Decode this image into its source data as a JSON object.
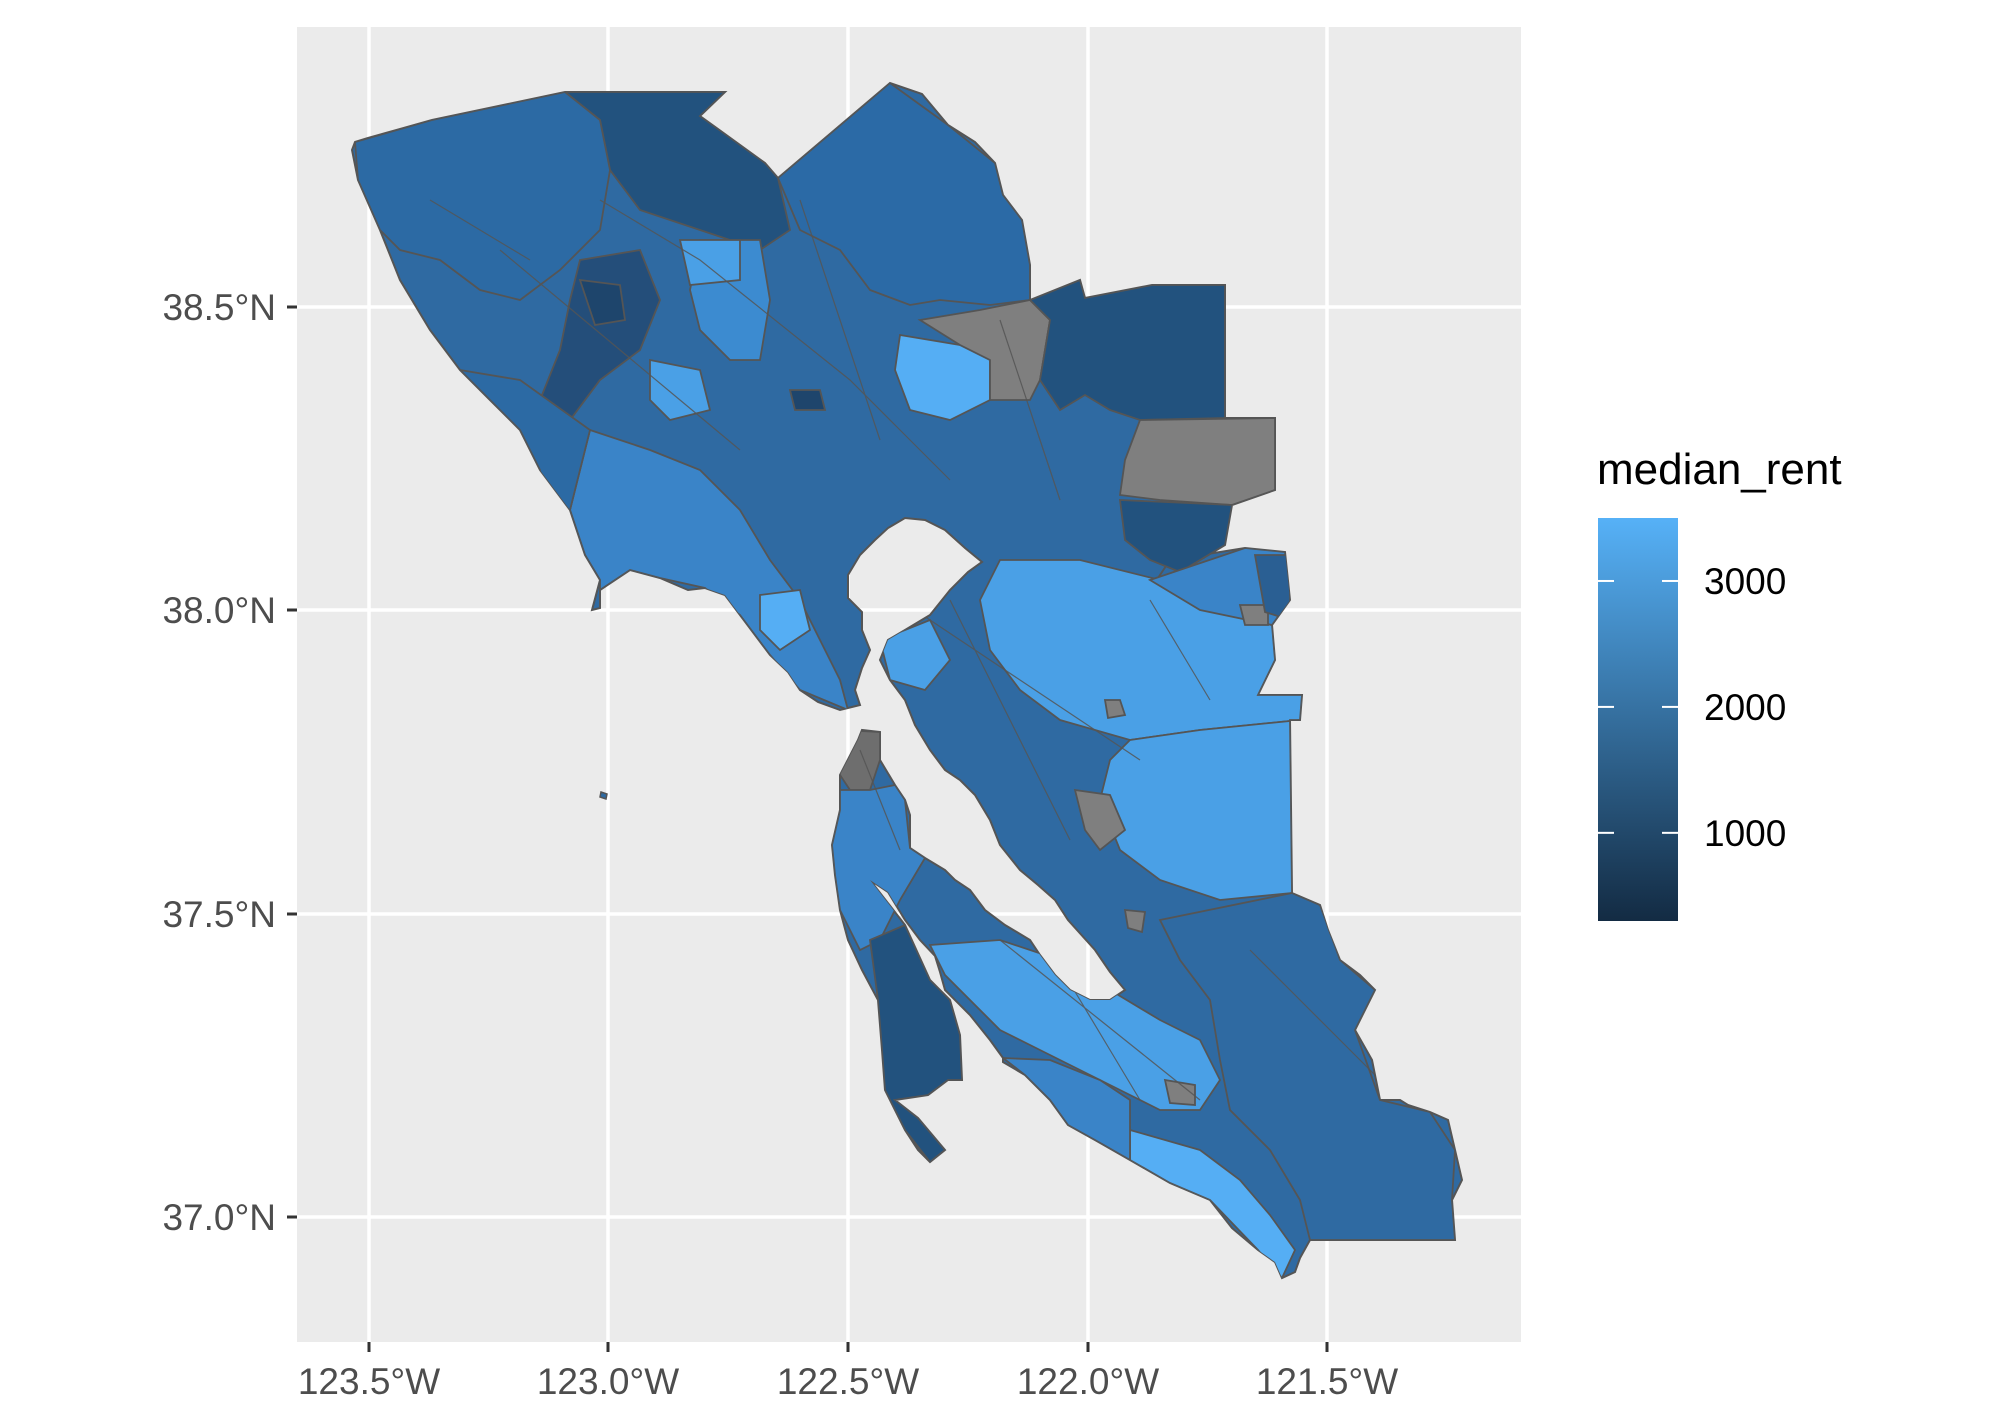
{
  "chart_data": {
    "type": "choropleth map",
    "x_ticks": [
      "123.5°W",
      "123.0°W",
      "122.5°W",
      "122.0°W",
      "121.5°W"
    ],
    "y_ticks": [
      "38.5°N",
      "38.0°N",
      "37.5°N",
      "37.0°N"
    ],
    "x_tick_values": [
      -123.5,
      -123.0,
      -122.5,
      -122.0,
      -121.5
    ],
    "y_tick_values": [
      38.5,
      38.0,
      37.5,
      37.0
    ],
    "xlim": [
      -123.65,
      -121.1
    ],
    "ylim": [
      36.85,
      38.95
    ],
    "grid": true,
    "legend": {
      "title": "median_rent",
      "position": "right",
      "labels": [
        "3000",
        "2000",
        "1000"
      ],
      "values": [
        3000,
        2000,
        1000
      ],
      "range": [
        300,
        3500
      ],
      "low_color": "#132b43",
      "high_color": "#56b1f7"
    },
    "na_color": "#7f7f7f",
    "panel_background": "#ebebeb",
    "grid_color": "#ffffff"
  }
}
